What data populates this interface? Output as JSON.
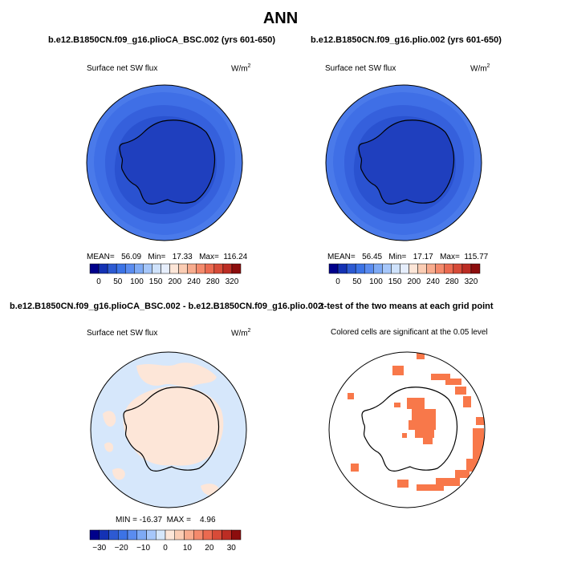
{
  "title": "ANN",
  "colors": {
    "scale_top": [
      "#00008b",
      "#1432b4",
      "#2d5ad2",
      "#3c73e6",
      "#5a8cf0",
      "#7eaaf5",
      "#a6c7fa",
      "#cfe2fb",
      "#e6eefc",
      "#fde6d8",
      "#fbcdb4",
      "#f8ac8e",
      "#f48a6c",
      "#eb6a50",
      "#d74b38",
      "#bc2d24",
      "#8c0d0d"
    ],
    "scale_diff": [
      "#00008b",
      "#1432b4",
      "#2d5ad2",
      "#3c73e6",
      "#5a8cf0",
      "#7eaaf5",
      "#a6c7fa",
      "#d6e7fb",
      "#fde6d8",
      "#fbcdb4",
      "#f8ac8e",
      "#f48a6c",
      "#eb6a50",
      "#d74b38",
      "#bc2d24",
      "#8c0d0d"
    ],
    "ocean_outer": "#4a7aea",
    "ocean_mid": "#3560dc",
    "ocean_inner": "#2248c6",
    "land": "#1e3cb8",
    "diff_base": "#d6e7fb",
    "diff_pos": "#fde6d8",
    "sig_cell": "#f8784a"
  },
  "panels": [
    {
      "title": "b.e12.B1850CN.f09_g16.plioCA_BSC.002 (yrs 601-650)",
      "left_label": "Surface net SW flux",
      "units": "W/m",
      "units_sup": "2",
      "stats": "MEAN=   56.09   Min=   17.33   Max=  116.24",
      "ticks": [
        "0",
        "50",
        "100",
        "150",
        "200",
        "240",
        "280",
        "320"
      ]
    },
    {
      "title": "b.e12.B1850CN.f09_g16.plio.002 (yrs 601-650)",
      "left_label": "Surface net SW flux",
      "units": "W/m",
      "units_sup": "2",
      "stats": "MEAN=   56.45   Min=   17.17   Max=  115.77",
      "ticks": [
        "0",
        "50",
        "100",
        "150",
        "200",
        "240",
        "280",
        "320"
      ]
    },
    {
      "title": "b.e12.B1850CN.f09_g16.plioCA_BSC.002 - b.e12.B1850CN.f09_g16.plio.002",
      "left_label": "Surface net SW flux",
      "units": "W/m",
      "units_sup": "2",
      "stats": "MIN = -16.37  MAX =    4.96",
      "ticks": [
        "−30",
        "−20",
        "−10",
        "0",
        "10",
        "20",
        "30"
      ]
    },
    {
      "title": "t-test of the two means at each grid point",
      "subtitle": "Colored cells are significant at the 0.05 level"
    }
  ]
}
